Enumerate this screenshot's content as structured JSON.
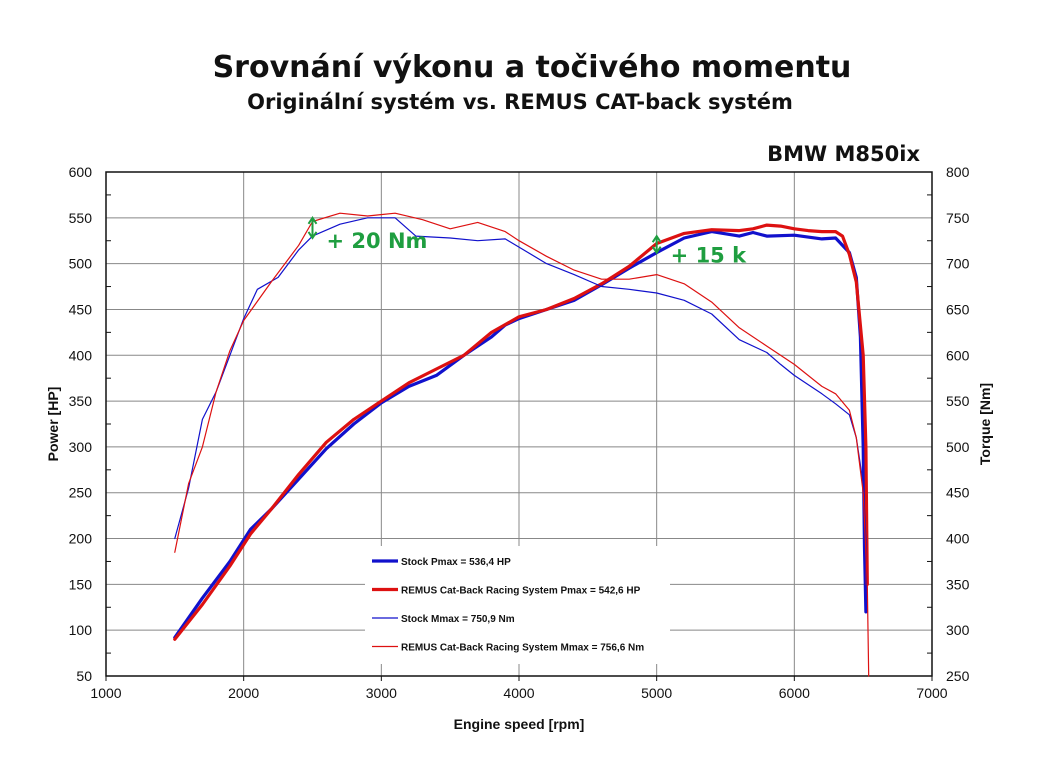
{
  "header": {
    "title": "Srovnání výkonu a točivého momentu",
    "subtitle": "Originální systém vs. REMUS CAT-back systém",
    "model": "BMW M850ix"
  },
  "colors": {
    "stock": "#1111cc",
    "remus": "#dd1111",
    "annotation": "#1f9e40",
    "grid": "#888888"
  },
  "chart_data": {
    "type": "line",
    "xlabel": "Engine speed [rpm]",
    "ylabel_left": "Power [HP]",
    "ylabel_right": "Torque [Nm]",
    "xlim": [
      1000,
      7000
    ],
    "ylim_left": [
      50,
      600
    ],
    "ylim_right": [
      250,
      800
    ],
    "x_ticks": [
      "1000",
      "2000",
      "3000",
      "4000",
      "5000",
      "6000",
      "7000"
    ],
    "y_left_ticks": [
      "600",
      "550",
      "500",
      "450",
      "400",
      "350",
      "300",
      "250",
      "200",
      "150",
      "100",
      "50"
    ],
    "y_right_ticks": [
      "800",
      "750",
      "700",
      "650",
      "600",
      "550",
      "500",
      "450",
      "400",
      "350",
      "300",
      "250"
    ],
    "grid": true,
    "legend_position": "bottom-center",
    "series": [
      {
        "name": "Stock Pmax = 536,4 HP",
        "axis": "left",
        "color": "#1111cc",
        "weight": "thick",
        "points": [
          [
            1500,
            92
          ],
          [
            1700,
            135
          ],
          [
            1900,
            175
          ],
          [
            2050,
            210
          ],
          [
            2200,
            232
          ],
          [
            2400,
            265
          ],
          [
            2600,
            298
          ],
          [
            2800,
            325
          ],
          [
            3000,
            348
          ],
          [
            3200,
            366
          ],
          [
            3400,
            378
          ],
          [
            3600,
            400
          ],
          [
            3800,
            420
          ],
          [
            3900,
            433
          ],
          [
            4000,
            440
          ],
          [
            4200,
            450
          ],
          [
            4400,
            460
          ],
          [
            4600,
            477
          ],
          [
            4800,
            495
          ],
          [
            5000,
            512
          ],
          [
            5200,
            528
          ],
          [
            5400,
            535
          ],
          [
            5600,
            530
          ],
          [
            5700,
            534
          ],
          [
            5800,
            530
          ],
          [
            6000,
            531
          ],
          [
            6200,
            527
          ],
          [
            6300,
            528
          ],
          [
            6400,
            512
          ],
          [
            6450,
            485
          ],
          [
            6480,
            420
          ],
          [
            6500,
            300
          ],
          [
            6510,
            190
          ],
          [
            6520,
            120
          ]
        ]
      },
      {
        "name": "REMUS Cat-Back Racing System Pmax = 542,6 HP",
        "axis": "left",
        "color": "#dd1111",
        "weight": "thick",
        "points": [
          [
            1500,
            90
          ],
          [
            1700,
            128
          ],
          [
            1900,
            170
          ],
          [
            2050,
            205
          ],
          [
            2200,
            232
          ],
          [
            2400,
            270
          ],
          [
            2600,
            305
          ],
          [
            2800,
            330
          ],
          [
            3000,
            350
          ],
          [
            3200,
            370
          ],
          [
            3400,
            385
          ],
          [
            3600,
            400
          ],
          [
            3800,
            425
          ],
          [
            4000,
            442
          ],
          [
            4200,
            450
          ],
          [
            4400,
            462
          ],
          [
            4600,
            478
          ],
          [
            4800,
            497
          ],
          [
            5000,
            522
          ],
          [
            5200,
            533
          ],
          [
            5400,
            537
          ],
          [
            5600,
            536
          ],
          [
            5700,
            538
          ],
          [
            5800,
            542
          ],
          [
            5900,
            541
          ],
          [
            6000,
            538
          ],
          [
            6100,
            536
          ],
          [
            6200,
            535
          ],
          [
            6300,
            535
          ],
          [
            6350,
            530
          ],
          [
            6400,
            510
          ],
          [
            6450,
            480
          ],
          [
            6500,
            400
          ],
          [
            6520,
            300
          ],
          [
            6530,
            150
          ]
        ]
      },
      {
        "name": "Stock Mmax = 750,9 Nm",
        "axis": "right",
        "color": "#1111cc",
        "weight": "thin",
        "points": [
          [
            1500,
            400
          ],
          [
            1600,
            455
          ],
          [
            1700,
            530
          ],
          [
            1800,
            560
          ],
          [
            1900,
            600
          ],
          [
            2000,
            640
          ],
          [
            2100,
            672
          ],
          [
            2250,
            685
          ],
          [
            2400,
            715
          ],
          [
            2500,
            730
          ],
          [
            2700,
            743
          ],
          [
            2900,
            750
          ],
          [
            3100,
            750
          ],
          [
            3250,
            730
          ],
          [
            3500,
            728
          ],
          [
            3700,
            725
          ],
          [
            3900,
            727
          ],
          [
            4000,
            718
          ],
          [
            4200,
            700
          ],
          [
            4400,
            688
          ],
          [
            4600,
            675
          ],
          [
            4800,
            672
          ],
          [
            5000,
            668
          ],
          [
            5200,
            660
          ],
          [
            5400,
            645
          ],
          [
            5600,
            617
          ],
          [
            5800,
            603
          ],
          [
            5900,
            590
          ],
          [
            6000,
            578
          ],
          [
            6200,
            558
          ],
          [
            6300,
            547
          ],
          [
            6400,
            535
          ],
          [
            6450,
            510
          ],
          [
            6500,
            460
          ],
          [
            6520,
            400
          ],
          [
            6530,
            320
          ]
        ]
      },
      {
        "name": "REMUS Cat-Back Racing System Mmax = 756,6 Nm",
        "axis": "right",
        "color": "#dd1111",
        "weight": "thin",
        "points": [
          [
            1500,
            385
          ],
          [
            1600,
            460
          ],
          [
            1700,
            500
          ],
          [
            1800,
            560
          ],
          [
            1900,
            605
          ],
          [
            2000,
            638
          ],
          [
            2200,
            680
          ],
          [
            2400,
            720
          ],
          [
            2500,
            746
          ],
          [
            2700,
            755
          ],
          [
            2900,
            752
          ],
          [
            3100,
            755
          ],
          [
            3300,
            748
          ],
          [
            3500,
            738
          ],
          [
            3700,
            745
          ],
          [
            3900,
            735
          ],
          [
            4000,
            725
          ],
          [
            4200,
            708
          ],
          [
            4400,
            693
          ],
          [
            4600,
            683
          ],
          [
            4800,
            683
          ],
          [
            5000,
            688
          ],
          [
            5200,
            678
          ],
          [
            5400,
            658
          ],
          [
            5600,
            630
          ],
          [
            5800,
            610
          ],
          [
            6000,
            590
          ],
          [
            6200,
            566
          ],
          [
            6300,
            558
          ],
          [
            6400,
            540
          ],
          [
            6450,
            510
          ],
          [
            6500,
            450
          ],
          [
            6530,
            350
          ],
          [
            6540,
            250
          ]
        ]
      }
    ],
    "annotations": [
      {
        "text": "+ 20 Nm",
        "x": 2500,
        "y_from": 728,
        "y_to": 750,
        "axis": "right"
      },
      {
        "text": "+ 15 k",
        "x": 5000,
        "y_from": 512,
        "y_to": 530,
        "axis": "left"
      }
    ]
  }
}
